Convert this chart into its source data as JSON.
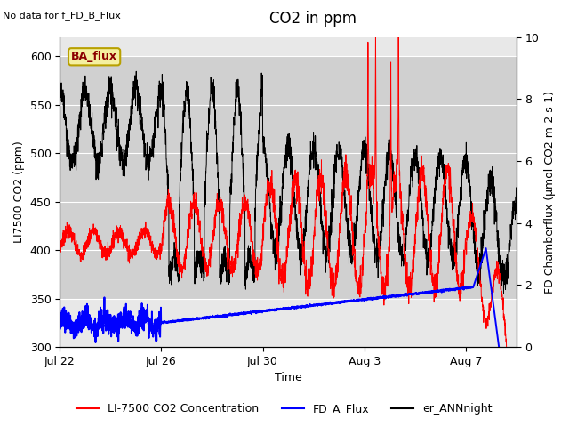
{
  "title": "CO2 in ppm",
  "top_left_text": "No data for f_FD_B_Flux",
  "ylabel_left": "LI7500 CO2 (ppm)",
  "ylabel_right": "FD Chamberflux (μmol CO2 m-2 s-1)",
  "xlabel": "Time",
  "ylim_left": [
    300,
    620
  ],
  "ylim_right": [
    0.0,
    10.0
  ],
  "yticks_left": [
    300,
    350,
    400,
    450,
    500,
    550,
    600
  ],
  "yticks_right": [
    0.0,
    2.0,
    4.0,
    6.0,
    8.0,
    10.0
  ],
  "xtick_labels": [
    "Jul 22",
    "Jul 26",
    "Jul 30",
    "Aug 3",
    "Aug 7"
  ],
  "xtick_positions": [
    0,
    4,
    8,
    12,
    16
  ],
  "xlim": [
    0,
    18
  ],
  "gray_band_ylim": [
    350,
    600
  ],
  "ba_flux_label": "BA_flux",
  "legend_entries": [
    "LI-7500 CO2 Concentration",
    "FD_A_Flux",
    "er_ANNnight"
  ],
  "legend_colors": [
    "red",
    "blue",
    "black"
  ],
  "plot_bg_color": "#e8e8e8",
  "gray_band_color": "#d0d0d0",
  "title_fontsize": 12,
  "label_fontsize": 9,
  "tick_fontsize": 9,
  "legend_fontsize": 9,
  "n_points": 3000
}
